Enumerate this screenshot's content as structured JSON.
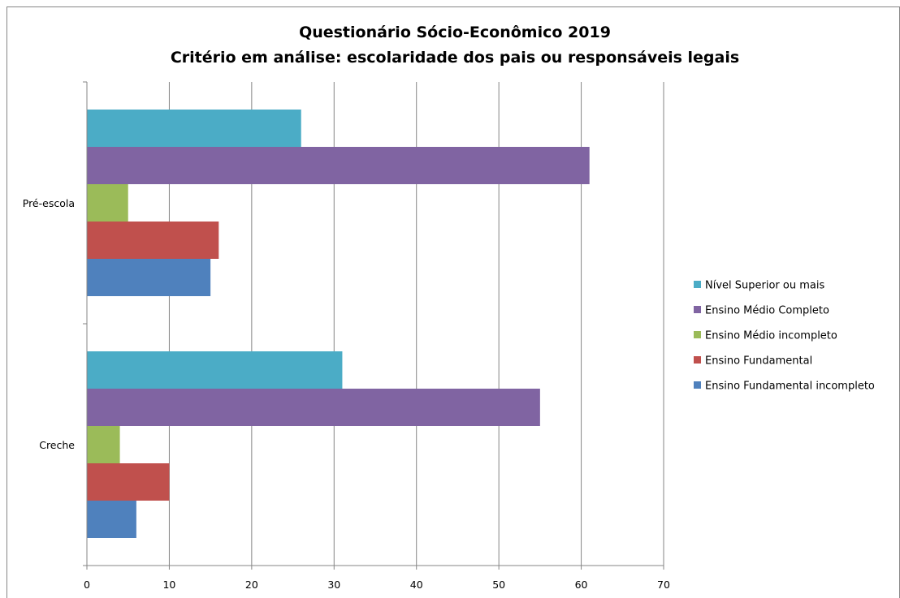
{
  "chart_data": {
    "type": "bar",
    "orientation": "horizontal",
    "title_lines": [
      "Questionário Sócio-Econômico 2019",
      "Critério em análise: escolaridade dos pais ou responsáveis legais"
    ],
    "xlabel": "",
    "ylabel": "",
    "categories": [
      "Creche",
      "Pré-escola"
    ],
    "xlim": [
      0,
      70
    ],
    "x_ticks": [
      0,
      10,
      20,
      30,
      40,
      50,
      60,
      70
    ],
    "grid": "vertical",
    "legend_position": "right",
    "series": [
      {
        "name": "Ensino Fundamental incompleto",
        "color": "#4f81bd",
        "values": [
          6,
          15
        ]
      },
      {
        "name": "Ensino Fundamental",
        "color": "#c0504d",
        "values": [
          10,
          16
        ]
      },
      {
        "name": "Ensino Médio incompleto",
        "color": "#9bbb59",
        "values": [
          4,
          5
        ]
      },
      {
        "name": "Ensino Médio Completo",
        "color": "#8064a2",
        "values": [
          55,
          61
        ]
      },
      {
        "name": "Nível Superior ou mais",
        "color": "#4bacc6",
        "values": [
          31,
          26
        ]
      }
    ]
  }
}
